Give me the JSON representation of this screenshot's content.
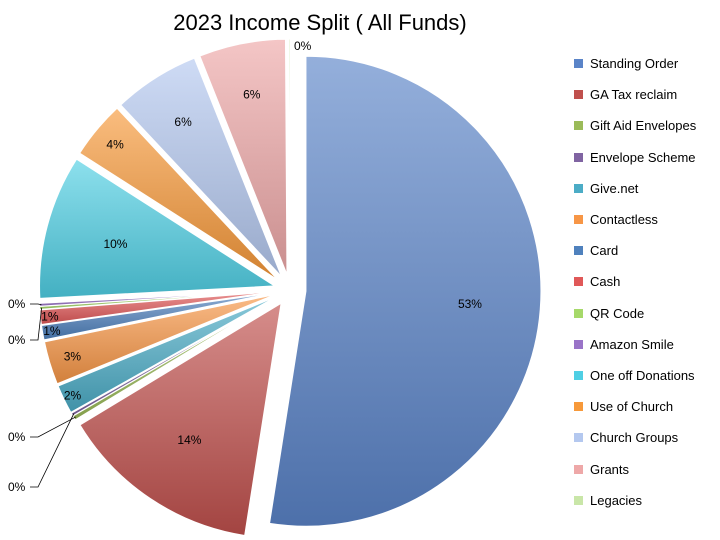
{
  "chart_data": {
    "type": "pie",
    "title": "2023 Income Split ( All Funds)",
    "legend_position": "right",
    "exploded": true,
    "slices": [
      {
        "name": "Standing Order",
        "value": 53,
        "label": "53%",
        "color": "#5a84c8"
      },
      {
        "name": "GA Tax reclaim",
        "value": 14,
        "label": "14%",
        "color": "#c0504d"
      },
      {
        "name": "Gift Aid Envelopes",
        "value": 0.3,
        "label": "0%",
        "color": "#9bbb59"
      },
      {
        "name": "Envelope Scheme",
        "value": 0.2,
        "label": "0%",
        "color": "#8064a2"
      },
      {
        "name": "Give.net",
        "value": 2,
        "label": "2%",
        "color": "#4bacc6"
      },
      {
        "name": "Contactless",
        "value": 3,
        "label": "3%",
        "color": "#f79646"
      },
      {
        "name": "Card",
        "value": 1,
        "label": "1%",
        "color": "#4f81bd"
      },
      {
        "name": "Cash",
        "value": 1,
        "label": "1%",
        "color": "#e05858"
      },
      {
        "name": "QR Code",
        "value": 0.2,
        "label": "0%",
        "color": "#a6d96a"
      },
      {
        "name": "Amazon Smile",
        "value": 0.2,
        "label": "0%",
        "color": "#9a74c8"
      },
      {
        "name": "One off Donations",
        "value": 10,
        "label": "10%",
        "color": "#4fcfe4"
      },
      {
        "name": "Use of Church",
        "value": 4,
        "label": "4%",
        "color": "#f7993a"
      },
      {
        "name": "Church Groups",
        "value": 6,
        "label": "6%",
        "color": "#b4c8ef"
      },
      {
        "name": "Grants",
        "value": 6,
        "label": "6%",
        "color": "#eea8a8"
      },
      {
        "name": "Legacies",
        "value": 0.1,
        "label": "0%",
        "color": "#c9e6a8"
      }
    ]
  }
}
